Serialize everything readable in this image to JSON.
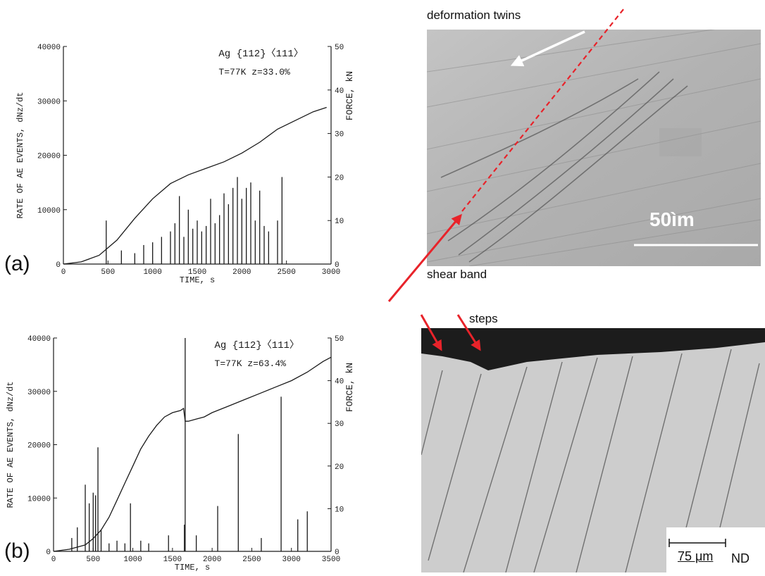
{
  "chart_data": [
    {
      "type": "line",
      "panel_label": "(a)",
      "title_line1": "Ag {112}〈111〉",
      "title_line2": "T=77K   z=33.0%",
      "xlabel": "TIME, s",
      "ylabel": "RATE OF AE EVENTS, dNz/dt",
      "y2label": "FORCE, kN",
      "xlim": [
        0,
        3000
      ],
      "ylim": [
        0,
        40000
      ],
      "y2lim": [
        0,
        50
      ],
      "x_ticks": [
        "0",
        "500",
        "1000",
        "1500",
        "2000",
        "2500",
        "3000"
      ],
      "y_ticks": [
        "0",
        "10000",
        "20000",
        "30000",
        "40000"
      ],
      "y2_ticks": [
        "0",
        "10",
        "20",
        "30",
        "40",
        "50"
      ],
      "series": [
        {
          "kind": "force",
          "x": [
            0,
            200,
            400,
            600,
            800,
            1000,
            1200,
            1400,
            1600,
            1800,
            2000,
            2200,
            2400,
            2600,
            2800,
            2950
          ],
          "y": [
            0,
            0.5,
            2,
            5.5,
            10.5,
            15,
            18.5,
            20.5,
            22,
            23.5,
            25.5,
            28,
            31,
            33,
            35,
            36
          ]
        },
        {
          "kind": "ae_rate",
          "x": [
            480,
            650,
            800,
            900,
            1000,
            1100,
            1200,
            1250,
            1300,
            1350,
            1400,
            1450,
            1500,
            1550,
            1600,
            1650,
            1700,
            1750,
            1800,
            1850,
            1900,
            1950,
            2000,
            2050,
            2100,
            2150,
            2200,
            2250,
            2300,
            2400,
            2450
          ],
          "y": [
            8000,
            2500,
            2000,
            3500,
            4000,
            5000,
            6000,
            7500,
            12500,
            5000,
            10000,
            6500,
            8000,
            6000,
            7000,
            12000,
            7500,
            9000,
            13000,
            11000,
            14000,
            16000,
            12000,
            14000,
            15000,
            8000,
            13500,
            7000,
            6000,
            8000,
            16000
          ]
        }
      ]
    },
    {
      "type": "line",
      "panel_label": "(b)",
      "title_line1": "Ag {112}〈111〉",
      "title_line2": "T=77K   z=63.4%",
      "xlabel": "TIME, s",
      "ylabel": "RATE OF AE EVENTS, dNz/dt",
      "y2label": "FORCE, kN",
      "xlim": [
        0,
        3500
      ],
      "ylim": [
        0,
        40000
      ],
      "y2lim": [
        0,
        50
      ],
      "x_ticks": [
        "0",
        "500",
        "1000",
        "1500",
        "2000",
        "2500",
        "3000",
        "3500"
      ],
      "y_ticks": [
        "0",
        "10000",
        "20000",
        "30000",
        "40000"
      ],
      "y2_ticks": [
        "0",
        "10",
        "20",
        "30",
        "40",
        "50"
      ],
      "series": [
        {
          "kind": "force",
          "x": [
            0,
            200,
            400,
            500,
            600,
            700,
            800,
            900,
            1000,
            1100,
            1200,
            1300,
            1400,
            1500,
            1600,
            1640,
            1660,
            1700,
            1800,
            1900,
            2000,
            2200,
            2400,
            2600,
            2800,
            3000,
            3200,
            3400,
            3500
          ],
          "y": [
            0,
            0.5,
            1.5,
            3,
            5,
            8,
            12,
            16,
            20,
            24,
            27,
            29.5,
            31.5,
            32.5,
            33,
            33.5,
            30.5,
            30.5,
            31,
            31.5,
            32.5,
            34,
            35.5,
            37,
            38.5,
            40,
            42,
            44.5,
            45.5
          ]
        },
        {
          "kind": "ae_rate",
          "x": [
            230,
            300,
            400,
            450,
            500,
            530,
            560,
            600,
            700,
            800,
            900,
            970,
            1100,
            1200,
            1450,
            1650,
            1660,
            1800,
            2070,
            2330,
            2620,
            2870,
            3080,
            3200
          ],
          "y": [
            2500,
            4500,
            12500,
            9000,
            11000,
            10500,
            19500,
            4000,
            1500,
            2000,
            1500,
            9000,
            2000,
            1500,
            3000,
            5000,
            40000,
            3000,
            8500,
            22000,
            2500,
            29000,
            6000,
            7500
          ]
        }
      ]
    }
  ],
  "micrographs": {
    "top": {
      "label_twins": "deformation twins",
      "label_shear": "shear band",
      "scale_text": "50ìm"
    },
    "bottom": {
      "label_steps": "steps",
      "scale_text": "75 μm",
      "axis_label": "ND"
    }
  },
  "colors": {
    "arrow_red": "#e8232a",
    "trace": "#1a1a1a",
    "micrograph_top_bg": "#b9b9b9",
    "micrograph_bottom_bg": "#cdcdcd",
    "micrograph_dark": "#1c1c1c"
  }
}
